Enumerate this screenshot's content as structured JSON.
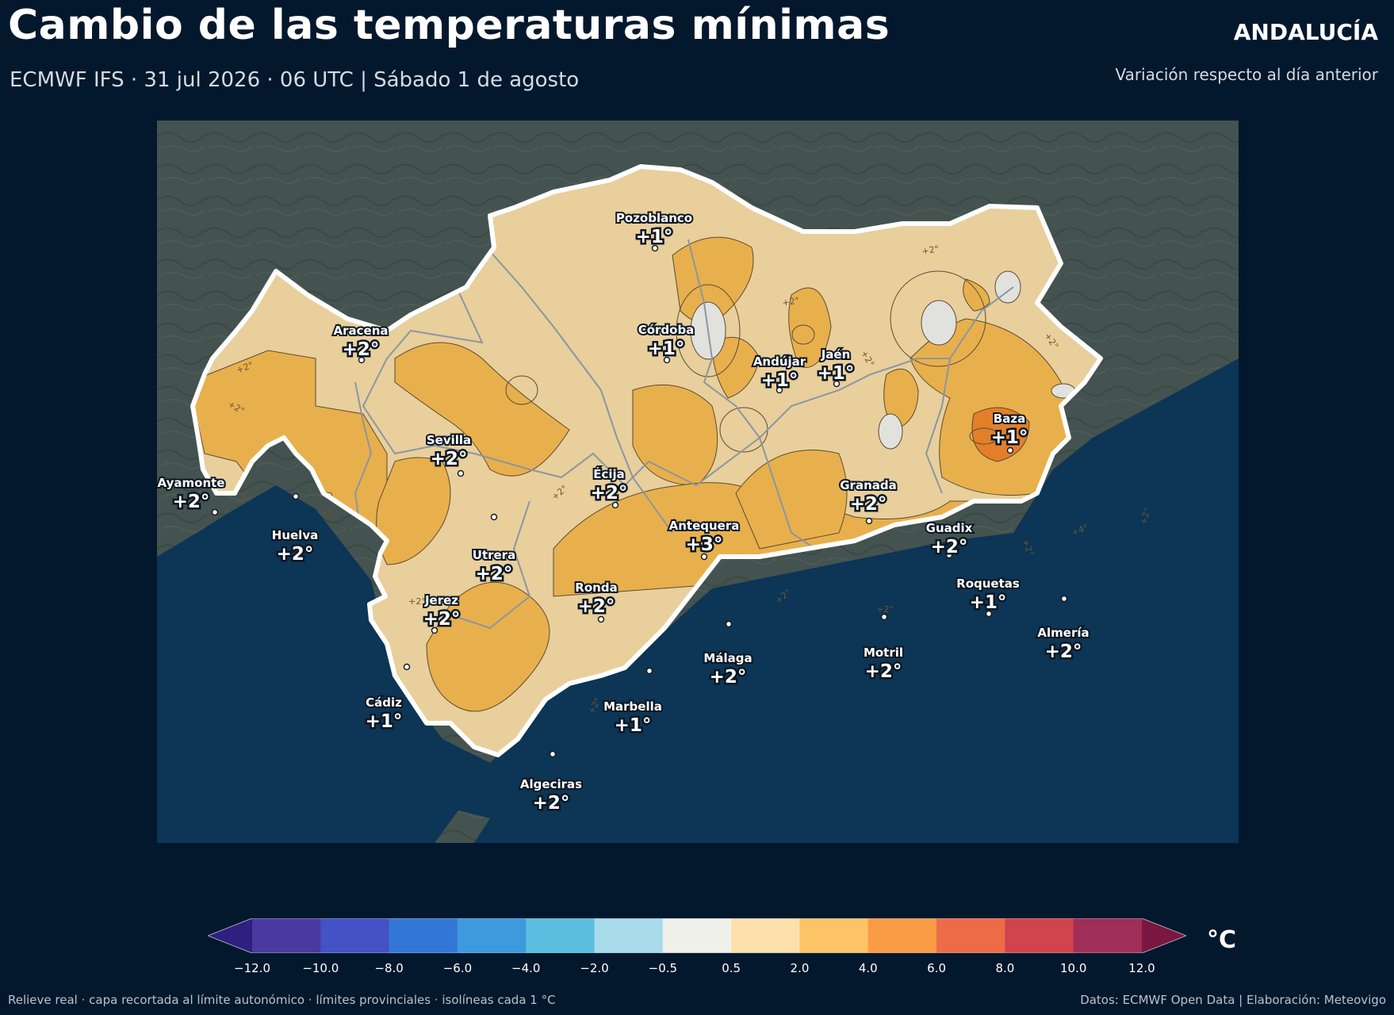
{
  "header": {
    "title": "Cambio de las temperaturas mínimas",
    "subtitle": "ECMWF IFS · 31 jul 2026 · 06 UTC  |  Sábado 1 de agosto",
    "region": "ANDALUCÍA",
    "region_subtitle": "Variación respecto al día anterior"
  },
  "cities": [
    {
      "name": "Pozoblanco",
      "value": "+1°"
    },
    {
      "name": "Córdoba",
      "value": "+1°"
    },
    {
      "name": "Aracena",
      "value": "+2°"
    },
    {
      "name": "Andújar",
      "value": "+1°"
    },
    {
      "name": "Jaén",
      "value": "+1°"
    },
    {
      "name": "Baza",
      "value": "+1°"
    },
    {
      "name": "Sevilla",
      "value": "+2°"
    },
    {
      "name": "Écija",
      "value": "+2°"
    },
    {
      "name": "Ayamonte",
      "value": "+2°"
    },
    {
      "name": "Granada",
      "value": "+2°"
    },
    {
      "name": "Huelva",
      "value": "+2°"
    },
    {
      "name": "Antequera",
      "value": "+3°"
    },
    {
      "name": "Guadix",
      "value": "+2°"
    },
    {
      "name": "Utrera",
      "value": "+2°"
    },
    {
      "name": "Roquetas",
      "value": "+1°"
    },
    {
      "name": "Ronda",
      "value": "+2°"
    },
    {
      "name": "Jerez",
      "value": "+2°"
    },
    {
      "name": "Almería",
      "value": "+2°"
    },
    {
      "name": "Málaga",
      "value": "+2°"
    },
    {
      "name": "Motril",
      "value": "+2°"
    },
    {
      "name": "Cádiz",
      "value": "+1°"
    },
    {
      "name": "Marbella",
      "value": "+1°"
    },
    {
      "name": "Algeciras",
      "value": "+2°"
    }
  ],
  "isolines": {
    "labels": [
      "+2°",
      "+4°"
    ]
  },
  "colorbar": {
    "ticks": [
      "−12.0",
      "−10.0",
      "−8.0",
      "−6.0",
      "−4.0",
      "−2.0",
      "−0.5",
      "0.5",
      "2.0",
      "4.0",
      "6.0",
      "8.0",
      "10.0",
      "12.0"
    ],
    "colors": [
      "#4a3aa0",
      "#4452c5",
      "#3377d6",
      "#3f99dd",
      "#5bbddf",
      "#a8dcea",
      "#f0f0ea",
      "#fde0ac",
      "#fcc466",
      "#f99b45",
      "#ee6b48",
      "#d1434d",
      "#9f2f57"
    ],
    "under_color": "#2e1f80",
    "over_color": "#7b1640",
    "unit": "°C"
  },
  "footer": {
    "left": "Relieve real · capa recortada al límite autonómico · límites provinciales · isolíneas cada 1 °C",
    "right": "Datos: ECMWF Open Data | Elaboración: Meteovigo"
  },
  "palette": {
    "background": "#03182c",
    "land_outside": "#44534f",
    "sea": "#0c3556",
    "band_0_2": "#e8cf9c",
    "band_2_4": "#e8b04c",
    "band_4_6": "#e37f29",
    "band_low": "#e1e2de"
  }
}
